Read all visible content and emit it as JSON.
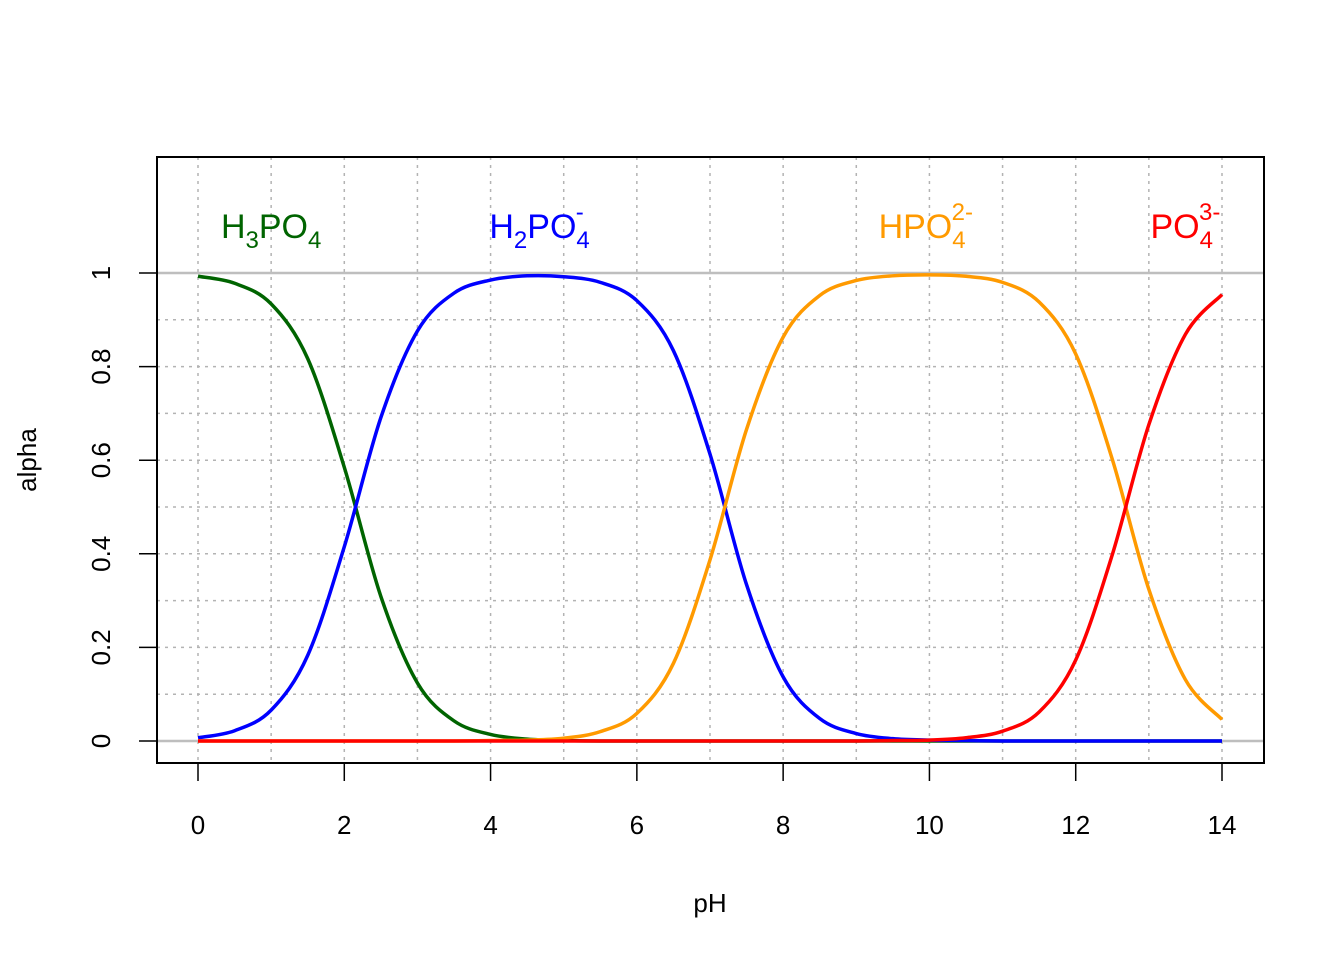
{
  "chart_data": {
    "type": "line",
    "title": "",
    "xlabel": "pH",
    "ylabel": "alpha",
    "xlim": [
      0,
      14
    ],
    "ylim": [
      0,
      1.2
    ],
    "grid": true,
    "xticks": [
      "0",
      "2",
      "4",
      "6",
      "8",
      "10",
      "12",
      "14"
    ],
    "yticks": [
      "0",
      "0.2",
      "0.4",
      "0.6",
      "0.8",
      "1"
    ],
    "x": [
      0,
      0.5,
      1,
      1.5,
      2,
      2.5,
      3,
      3.5,
      4,
      4.5,
      5,
      5.5,
      6,
      6.5,
      7,
      7.5,
      8,
      8.5,
      9,
      9.5,
      10,
      10.5,
      11,
      11.5,
      12,
      12.5,
      13,
      13.5,
      14
    ],
    "series": [
      {
        "name": "H3PO4",
        "color": "#006400",
        "label": [
          {
            "t": "H",
            "k": "n"
          },
          {
            "t": "3",
            "k": "sub"
          },
          {
            "t": "PO",
            "k": "n"
          },
          {
            "t": "4",
            "k": "sub"
          }
        ],
        "label_at": [
          1.0,
          1.1
        ],
        "values": [
          0.993,
          0.978,
          0.934,
          0.817,
          0.585,
          0.309,
          0.124,
          0.043,
          0.014,
          0.004,
          0.001,
          0,
          0,
          0,
          0,
          0,
          0,
          0,
          0,
          0,
          0,
          0,
          0,
          0,
          0,
          0,
          0,
          0,
          0
        ]
      },
      {
        "name": "H2PO4-",
        "color": "#0000ff",
        "label": [
          {
            "t": "H",
            "k": "n"
          },
          {
            "t": "2",
            "k": "sub"
          },
          {
            "t": "PO",
            "k": "n"
          },
          {
            "t": "4",
            "k": "sub"
          },
          {
            "t": "-",
            "k": "sup"
          }
        ],
        "label_at": [
          4.67,
          1.1
        ],
        "values": [
          0.007,
          0.022,
          0.066,
          0.183,
          0.415,
          0.691,
          0.876,
          0.957,
          0.985,
          0.994,
          0.992,
          0.98,
          0.941,
          0.834,
          0.613,
          0.334,
          0.137,
          0.048,
          0.016,
          0.005,
          0.002,
          0.001,
          0,
          0,
          0,
          0,
          0,
          0,
          0
        ]
      },
      {
        "name": "HPO4 2-",
        "color": "#ff9a00",
        "label": [
          {
            "t": "HPO",
            "k": "n"
          },
          {
            "t": "4",
            "k": "sub"
          },
          {
            "t": "2-",
            "k": "sup"
          }
        ],
        "label_at": [
          9.95,
          1.1
        ],
        "values": [
          0,
          0,
          0,
          0,
          0,
          0,
          0,
          0,
          0.001,
          0.002,
          0.006,
          0.02,
          0.059,
          0.166,
          0.387,
          0.666,
          0.863,
          0.952,
          0.984,
          0.994,
          0.996,
          0.993,
          0.98,
          0.938,
          0.827,
          0.602,
          0.324,
          0.131,
          0.046
        ]
      },
      {
        "name": "PO4 3-",
        "color": "#ff0000",
        "label": [
          {
            "t": "PO",
            "k": "n"
          },
          {
            "t": "4",
            "k": "sub"
          },
          {
            "t": "3-",
            "k": "sup"
          }
        ],
        "label_at": [
          13.5,
          1.1
        ],
        "values": [
          0,
          0,
          0,
          0,
          0,
          0,
          0,
          0,
          0,
          0,
          0,
          0,
          0,
          0,
          0,
          0,
          0,
          0,
          0,
          0.001,
          0.002,
          0.007,
          0.021,
          0.062,
          0.173,
          0.398,
          0.676,
          0.869,
          0.954
        ]
      }
    ]
  }
}
